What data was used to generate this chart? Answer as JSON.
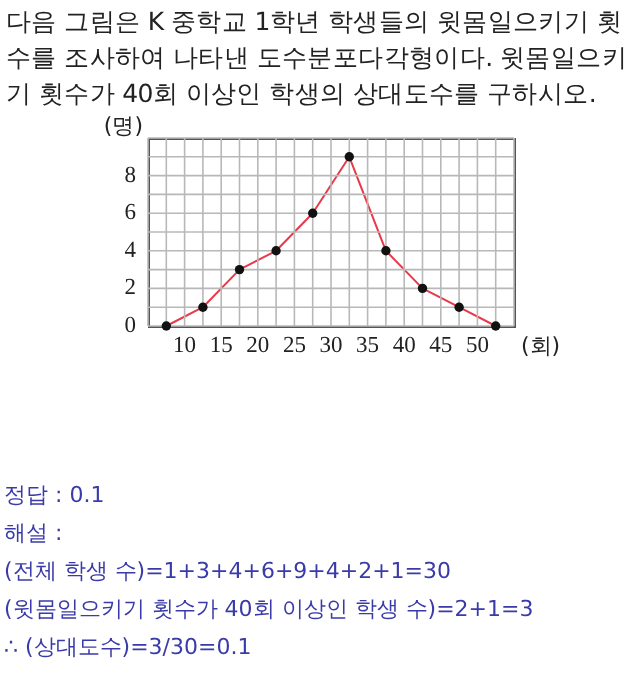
{
  "chart_data": {
    "type": "line",
    "title": "다음 그림은 K 중학교 1학년 학생들의 윗몸일으키기 횟수를 조사하여 나타낸 도수분포다각형이다. 윗몸일으키기 횟수가 40회 이상인 학생의 상대도수를 구하시오.",
    "xlabel": "(회)",
    "ylabel": "(명)",
    "x": [
      7.5,
      12.5,
      17.5,
      22.5,
      27.5,
      32.5,
      37.5,
      42.5,
      47.5,
      52.5
    ],
    "series": [
      {
        "color": "#e8394a",
        "values": [
          0,
          1,
          3,
          4,
          6,
          9,
          4,
          2,
          1,
          0
        ]
      }
    ],
    "xlim": [
      5,
      55
    ],
    "xticks": [
      {
        "value": 5,
        "label": null
      },
      {
        "value": 7.5,
        "label": null
      },
      10,
      {
        "value": 12.5,
        "label": null
      },
      15,
      {
        "value": 17.5,
        "label": null
      },
      20,
      {
        "value": 22.5,
        "label": null
      },
      25,
      {
        "value": 27.5,
        "label": null
      },
      30,
      {
        "value": 32.5,
        "label": null
      },
      35,
      {
        "value": 37.5,
        "label": null
      },
      40,
      {
        "value": 42.5,
        "label": null
      },
      45,
      {
        "value": 47.5,
        "label": null
      },
      50,
      {
        "value": 52.5,
        "label": null
      },
      {
        "value": 55,
        "label": null
      }
    ],
    "ylim": [
      0,
      10
    ],
    "yticks": [
      0,
      {
        "value": 1,
        "label": null
      },
      2,
      {
        "value": 3,
        "label": null
      },
      4,
      {
        "value": 5,
        "label": null
      },
      6,
      {
        "value": 7,
        "label": null
      },
      8,
      {
        "value": 9,
        "label": null
      },
      {
        "value": 10,
        "label": null
      }
    ],
    "grid": true,
    "marker": "circle",
    "line_style": "solid",
    "annotations": [
      "정답 : 0.1",
      "해설 :",
      "(전체 학생 수)=1+3+4+6+9+4+2+1=30",
      "(윗몸일으키기 횟수가 40회 이상인 학생 수)=2+1=3",
      "∴ (상대도수)=3/30=0.1"
    ]
  }
}
